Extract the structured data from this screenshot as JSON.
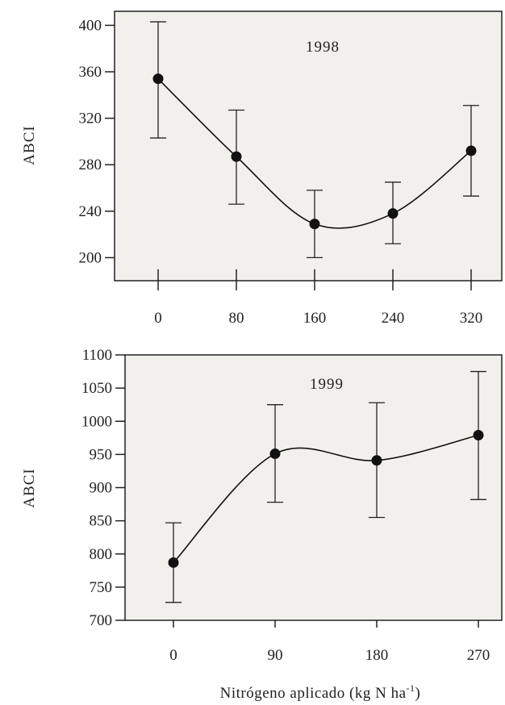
{
  "chart_data": [
    {
      "type": "line",
      "annotation": "1998",
      "ylabel": "ABCI",
      "x": [
        0,
        80,
        160,
        240,
        320
      ],
      "xticks": [
        "0",
        "80",
        "160",
        "240",
        "320"
      ],
      "yticks": [
        "200",
        "240",
        "280",
        "320",
        "360",
        "400"
      ],
      "ylim": [
        190,
        412
      ],
      "series": [
        {
          "values": [
            354,
            287,
            229,
            238,
            292
          ],
          "error_low": [
            303,
            246,
            200,
            212,
            253
          ],
          "error_high": [
            403,
            327,
            258,
            265,
            331
          ]
        }
      ],
      "fit_curve": "smooth",
      "grid": false,
      "colors": {
        "line": "#111111",
        "marker": "#111111",
        "frame": "#222222",
        "background": "#f2f0ec"
      }
    },
    {
      "type": "line",
      "annotation": "1999",
      "ylabel": "ABCI",
      "x": [
        0,
        90,
        180,
        270
      ],
      "xticks": [
        "0",
        "90",
        "180",
        "270"
      ],
      "yticks": [
        "700",
        "750",
        "800",
        "850",
        "900",
        "950",
        "1000",
        "1050",
        "1100"
      ],
      "ylim": [
        700,
        1100
      ],
      "series": [
        {
          "values": [
            787,
            951,
            941,
            979
          ],
          "error_low": [
            727,
            878,
            855,
            882
          ],
          "error_high": [
            847,
            1025,
            1028,
            1075
          ]
        }
      ],
      "fit_curve": "smooth",
      "grid": false,
      "colors": {
        "line": "#111111",
        "marker": "#111111",
        "frame": "#222222",
        "background": "#f2f0ec"
      }
    }
  ],
  "xlabel": {
    "main": "Nitrógeno aplicado  (kg N ha",
    "superscript": "-1",
    "close": ")"
  }
}
